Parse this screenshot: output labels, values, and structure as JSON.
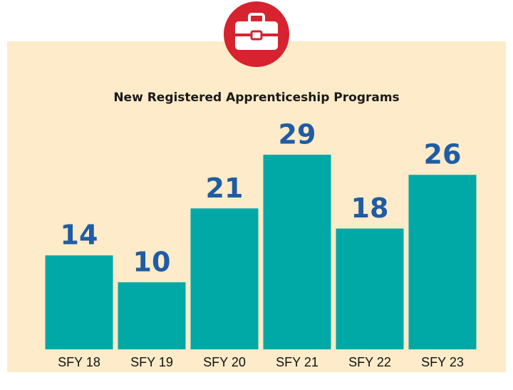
{
  "chart_data": {
    "type": "bar",
    "title": "New Registered Apprenticeship Programs",
    "categories": [
      "SFY 18",
      "SFY 19",
      "SFY 20",
      "SFY 21",
      "SFY 22",
      "SFY 23"
    ],
    "values": [
      14,
      10,
      21,
      29,
      18,
      26
    ],
    "color": "#00a9a5",
    "label_color": "#1f5ca3"
  }
}
